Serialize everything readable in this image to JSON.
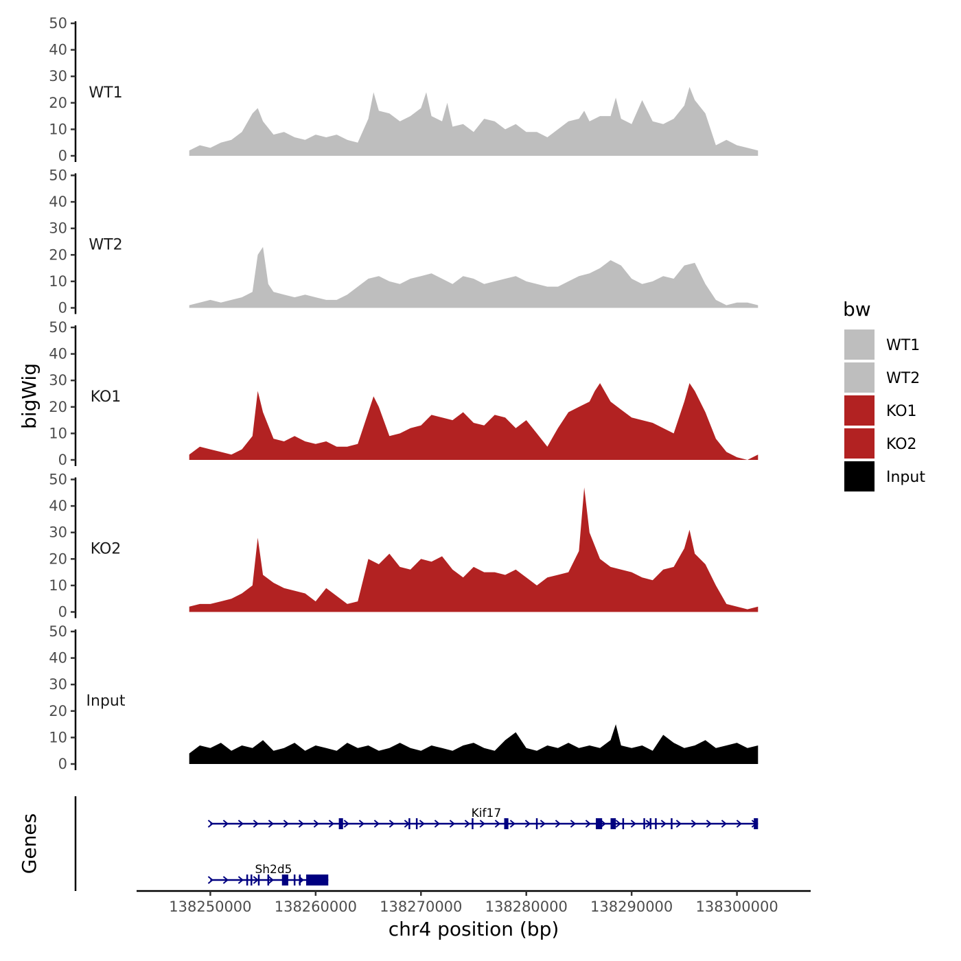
{
  "chart_data": {
    "type": "area",
    "chromosome": "chr4",
    "x_range": [
      138248000,
      138302000
    ],
    "xlim": [
      138243000,
      138307000
    ],
    "xlabel": "chr4 position (bp)",
    "ylabel": "bigWig",
    "genes_label": "Genes",
    "ylim": [
      0,
      50
    ],
    "y_ticks": [
      0,
      10,
      20,
      30,
      40,
      50
    ],
    "x_ticks": [
      {
        "value": 138250000,
        "label": "138250000"
      },
      {
        "value": 138260000,
        "label": "138260000"
      },
      {
        "value": 138270000,
        "label": "138270000"
      },
      {
        "value": 138280000,
        "label": "138280000"
      },
      {
        "value": 138290000,
        "label": "138290000"
      },
      {
        "value": 138300000,
        "label": "138300000"
      }
    ],
    "legend": {
      "title": "bw",
      "entries": [
        {
          "name": "WT1",
          "color": "#BEBEBE"
        },
        {
          "name": "WT2",
          "color": "#BEBEBE"
        },
        {
          "name": "KO1",
          "color": "#B22222"
        },
        {
          "name": "KO2",
          "color": "#B22222"
        },
        {
          "name": "Input",
          "color": "#000000"
        }
      ]
    },
    "series": [
      {
        "name": "WT1",
        "color": "#BEBEBE",
        "x": [
          138248000,
          138249000,
          138250000,
          138251000,
          138252000,
          138253000,
          138254000,
          138254500,
          138255000,
          138256000,
          138257000,
          138258000,
          138259000,
          138260000,
          138261000,
          138262000,
          138263000,
          138264000,
          138265000,
          138265500,
          138266000,
          138267000,
          138268000,
          138269000,
          138270000,
          138270500,
          138271000,
          138272000,
          138272500,
          138273000,
          138274000,
          138275000,
          138276000,
          138277000,
          138278000,
          138279000,
          138280000,
          138281000,
          138282000,
          138283000,
          138284000,
          138285000,
          138285500,
          138286000,
          138287000,
          138288000,
          138288500,
          138289000,
          138290000,
          138291000,
          138292000,
          138293000,
          138294000,
          138295000,
          138295500,
          138296000,
          138297000,
          138298000,
          138299000,
          138300000,
          138301000,
          138302000
        ],
        "values": [
          2,
          4,
          3,
          5,
          6,
          9,
          16,
          18,
          13,
          8,
          9,
          7,
          6,
          8,
          7,
          8,
          6,
          5,
          14,
          24,
          17,
          16,
          13,
          15,
          18,
          24,
          15,
          13,
          20,
          11,
          12,
          9,
          14,
          13,
          10,
          12,
          9,
          9,
          7,
          10,
          13,
          14,
          17,
          13,
          15,
          15,
          22,
          14,
          12,
          21,
          13,
          12,
          14,
          19,
          26,
          21,
          16,
          4,
          6,
          4,
          3,
          2
        ]
      },
      {
        "name": "WT2",
        "color": "#BEBEBE",
        "x": [
          138248000,
          138249000,
          138250000,
          138251000,
          138252000,
          138253000,
          138254000,
          138254500,
          138255000,
          138255500,
          138256000,
          138257000,
          138258000,
          138259000,
          138260000,
          138261000,
          138262000,
          138263000,
          138264000,
          138265000,
          138266000,
          138267000,
          138268000,
          138269000,
          138270000,
          138271000,
          138272000,
          138273000,
          138274000,
          138275000,
          138276000,
          138277000,
          138278000,
          138279000,
          138280000,
          138281000,
          138282000,
          138283000,
          138284000,
          138285000,
          138286000,
          138287000,
          138288000,
          138289000,
          138290000,
          138291000,
          138292000,
          138293000,
          138294000,
          138295000,
          138296000,
          138297000,
          138298000,
          138299000,
          138300000,
          138301000,
          138302000
        ],
        "values": [
          1,
          2,
          3,
          2,
          3,
          4,
          6,
          20,
          23,
          9,
          6,
          5,
          4,
          5,
          4,
          3,
          3,
          5,
          8,
          11,
          12,
          10,
          9,
          11,
          12,
          13,
          11,
          9,
          12,
          11,
          9,
          10,
          11,
          12,
          10,
          9,
          8,
          8,
          10,
          12,
          13,
          15,
          18,
          16,
          11,
          9,
          10,
          12,
          11,
          16,
          17,
          9,
          3,
          1,
          2,
          2,
          1
        ]
      },
      {
        "name": "KO1",
        "color": "#B22222",
        "x": [
          138248000,
          138249000,
          138250000,
          138251000,
          138252000,
          138253000,
          138254000,
          138254500,
          138255000,
          138256000,
          138257000,
          138258000,
          138259000,
          138260000,
          138261000,
          138262000,
          138263000,
          138264000,
          138265000,
          138265500,
          138266000,
          138267000,
          138268000,
          138269000,
          138270000,
          138271000,
          138272000,
          138273000,
          138274000,
          138275000,
          138276000,
          138277000,
          138278000,
          138279000,
          138280000,
          138281000,
          138282000,
          138283000,
          138284000,
          138285000,
          138286000,
          138286500,
          138287000,
          138288000,
          138289000,
          138290000,
          138291000,
          138292000,
          138293000,
          138294000,
          138295000,
          138295500,
          138296000,
          138297000,
          138298000,
          138299000,
          138300000,
          138301000,
          138302000
        ],
        "values": [
          2,
          5,
          4,
          3,
          2,
          4,
          9,
          26,
          18,
          8,
          7,
          9,
          7,
          6,
          7,
          5,
          5,
          6,
          18,
          24,
          20,
          9,
          10,
          12,
          13,
          17,
          16,
          15,
          18,
          14,
          13,
          17,
          16,
          12,
          15,
          10,
          5,
          12,
          18,
          20,
          22,
          26,
          29,
          22,
          19,
          16,
          15,
          14,
          12,
          10,
          22,
          29,
          26,
          18,
          8,
          3,
          1,
          0,
          2
        ]
      },
      {
        "name": "KO2",
        "color": "#B22222",
        "x": [
          138248000,
          138249000,
          138250000,
          138251000,
          138252000,
          138253000,
          138254000,
          138254500,
          138255000,
          138256000,
          138257000,
          138258000,
          138259000,
          138260000,
          138261000,
          138262000,
          138263000,
          138264000,
          138265000,
          138266000,
          138267000,
          138268000,
          138269000,
          138270000,
          138271000,
          138272000,
          138273000,
          138274000,
          138275000,
          138276000,
          138277000,
          138278000,
          138279000,
          138280000,
          138281000,
          138282000,
          138283000,
          138284000,
          138285000,
          138285500,
          138286000,
          138287000,
          138288000,
          138289000,
          138290000,
          138291000,
          138292000,
          138293000,
          138294000,
          138295000,
          138295500,
          138296000,
          138297000,
          138298000,
          138299000,
          138300000,
          138301000,
          138302000
        ],
        "values": [
          2,
          3,
          3,
          4,
          5,
          7,
          10,
          28,
          14,
          11,
          9,
          8,
          7,
          4,
          9,
          6,
          3,
          4,
          20,
          18,
          22,
          17,
          16,
          20,
          19,
          21,
          16,
          13,
          17,
          15,
          15,
          14,
          16,
          13,
          10,
          13,
          14,
          15,
          23,
          47,
          30,
          20,
          17,
          16,
          15,
          13,
          12,
          16,
          17,
          24,
          31,
          22,
          18,
          10,
          3,
          2,
          1,
          2
        ]
      },
      {
        "name": "Input",
        "color": "#000000",
        "x": [
          138248000,
          138249000,
          138250000,
          138251000,
          138252000,
          138253000,
          138254000,
          138255000,
          138256000,
          138257000,
          138258000,
          138259000,
          138260000,
          138261000,
          138262000,
          138263000,
          138264000,
          138265000,
          138266000,
          138267000,
          138268000,
          138269000,
          138270000,
          138271000,
          138272000,
          138273000,
          138274000,
          138275000,
          138276000,
          138277000,
          138278000,
          138279000,
          138280000,
          138281000,
          138282000,
          138283000,
          138284000,
          138285000,
          138286000,
          138287000,
          138288000,
          138288500,
          138289000,
          138290000,
          138291000,
          138292000,
          138293000,
          138294000,
          138295000,
          138296000,
          138297000,
          138298000,
          138299000,
          138300000,
          138301000,
          138302000
        ],
        "values": [
          4,
          7,
          6,
          8,
          5,
          7,
          6,
          9,
          5,
          6,
          8,
          5,
          7,
          6,
          5,
          8,
          6,
          7,
          5,
          6,
          8,
          6,
          5,
          7,
          6,
          5,
          7,
          8,
          6,
          5,
          9,
          12,
          6,
          5,
          7,
          6,
          8,
          6,
          7,
          6,
          9,
          15,
          7,
          6,
          7,
          5,
          11,
          8,
          6,
          7,
          9,
          6,
          7,
          8,
          6,
          7
        ]
      }
    ],
    "genes": [
      {
        "name": "Kif17",
        "strand": "+",
        "start": 138250000,
        "end": 138302000,
        "exons": [
          [
            138262200,
            138262600
          ],
          [
            138277900,
            138278300
          ],
          [
            138286600,
            138287200
          ],
          [
            138288000,
            138288500
          ],
          [
            138301600,
            138302000
          ]
        ],
        "thin_marks": [
          138268900,
          138269600,
          138274900,
          138281000,
          138289200,
          138291200,
          138291800,
          138292300,
          138293800
        ]
      },
      {
        "name": "Sh2d5",
        "strand": "+",
        "start": 138250000,
        "end": 138261200,
        "exons": [
          [
            138256800,
            138257400
          ],
          [
            138259100,
            138261200
          ]
        ],
        "thin_marks": [
          138253500,
          138253900,
          138254600,
          138255500,
          138258000,
          138258500
        ]
      }
    ]
  }
}
